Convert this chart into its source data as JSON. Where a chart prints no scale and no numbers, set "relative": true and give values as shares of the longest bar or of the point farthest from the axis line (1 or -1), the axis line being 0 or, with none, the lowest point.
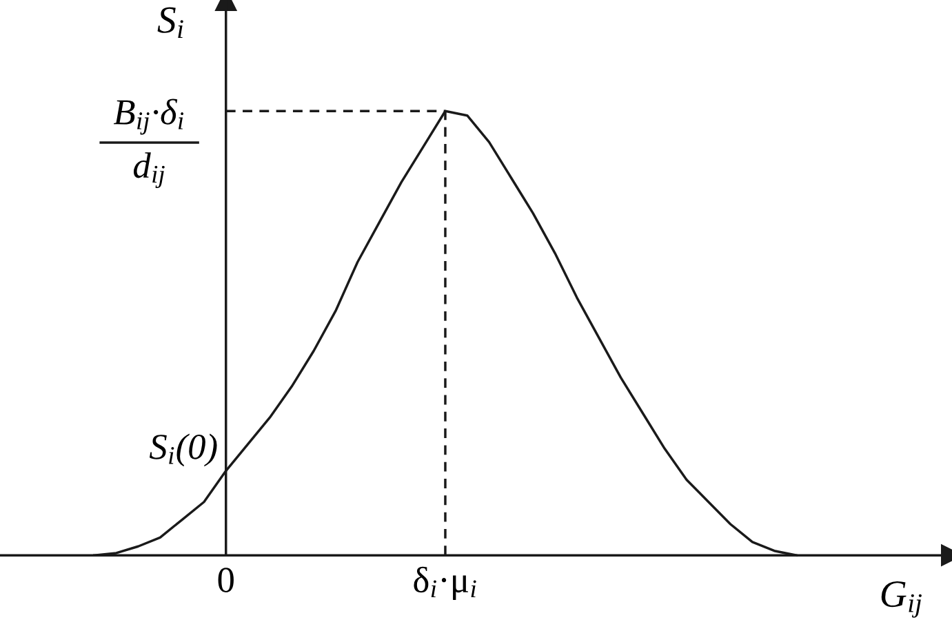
{
  "chart_data": {
    "type": "line",
    "relative": true,
    "xlabel": "G$_{ij}$",
    "ylabel": "S$_{i}$",
    "categories": [
      null,
      null,
      null,
      null,
      null,
      null,
      "0",
      null,
      null,
      null,
      null,
      null,
      null,
      null,
      null,
      null,
      "δ$_{i}$·μ$_{i}$",
      null,
      null,
      null,
      null,
      null,
      null,
      null,
      null,
      null,
      null,
      null,
      null,
      null,
      null,
      null,
      null
    ],
    "series": [
      {
        "color": "#1a1a1a",
        "values": [
          0,
          0.005,
          0.02,
          0.04,
          0.08,
          0.12,
          0.19,
          0.25,
          0.31,
          0.38,
          0.46,
          0.55,
          0.66,
          0.75,
          0.84,
          0.92,
          1,
          0.99,
          0.93,
          0.85,
          0.77,
          0.68,
          0.58,
          0.49,
          0.4,
          0.32,
          0.24,
          0.17,
          0.12,
          0.07,
          0.03,
          0.01,
          0
        ]
      }
    ],
    "ref_lines": [
      {
        "axis": "y",
        "value": 1,
        "line_style": "dashed",
        "color": "#1a1a1a"
      },
      {
        "axis": "x",
        "value": "δ$_{i}$·μ$_{i}$",
        "line_style": "dashed",
        "color": "#1a1a1a"
      }
    ],
    "annotations": [
      {
        "text": "B$_{ij}$·δ$_{i}$",
        "x": "0",
        "y": 1
      },
      {
        "text": "d$_{ij}$",
        "x": "0",
        "y": 1
      },
      {
        "text": "S$_{i}$(0)",
        "x": "0",
        "y": 0.19
      }
    ],
    "grid": false,
    "legend": false,
    "marker": "none",
    "line_style": "solid"
  }
}
